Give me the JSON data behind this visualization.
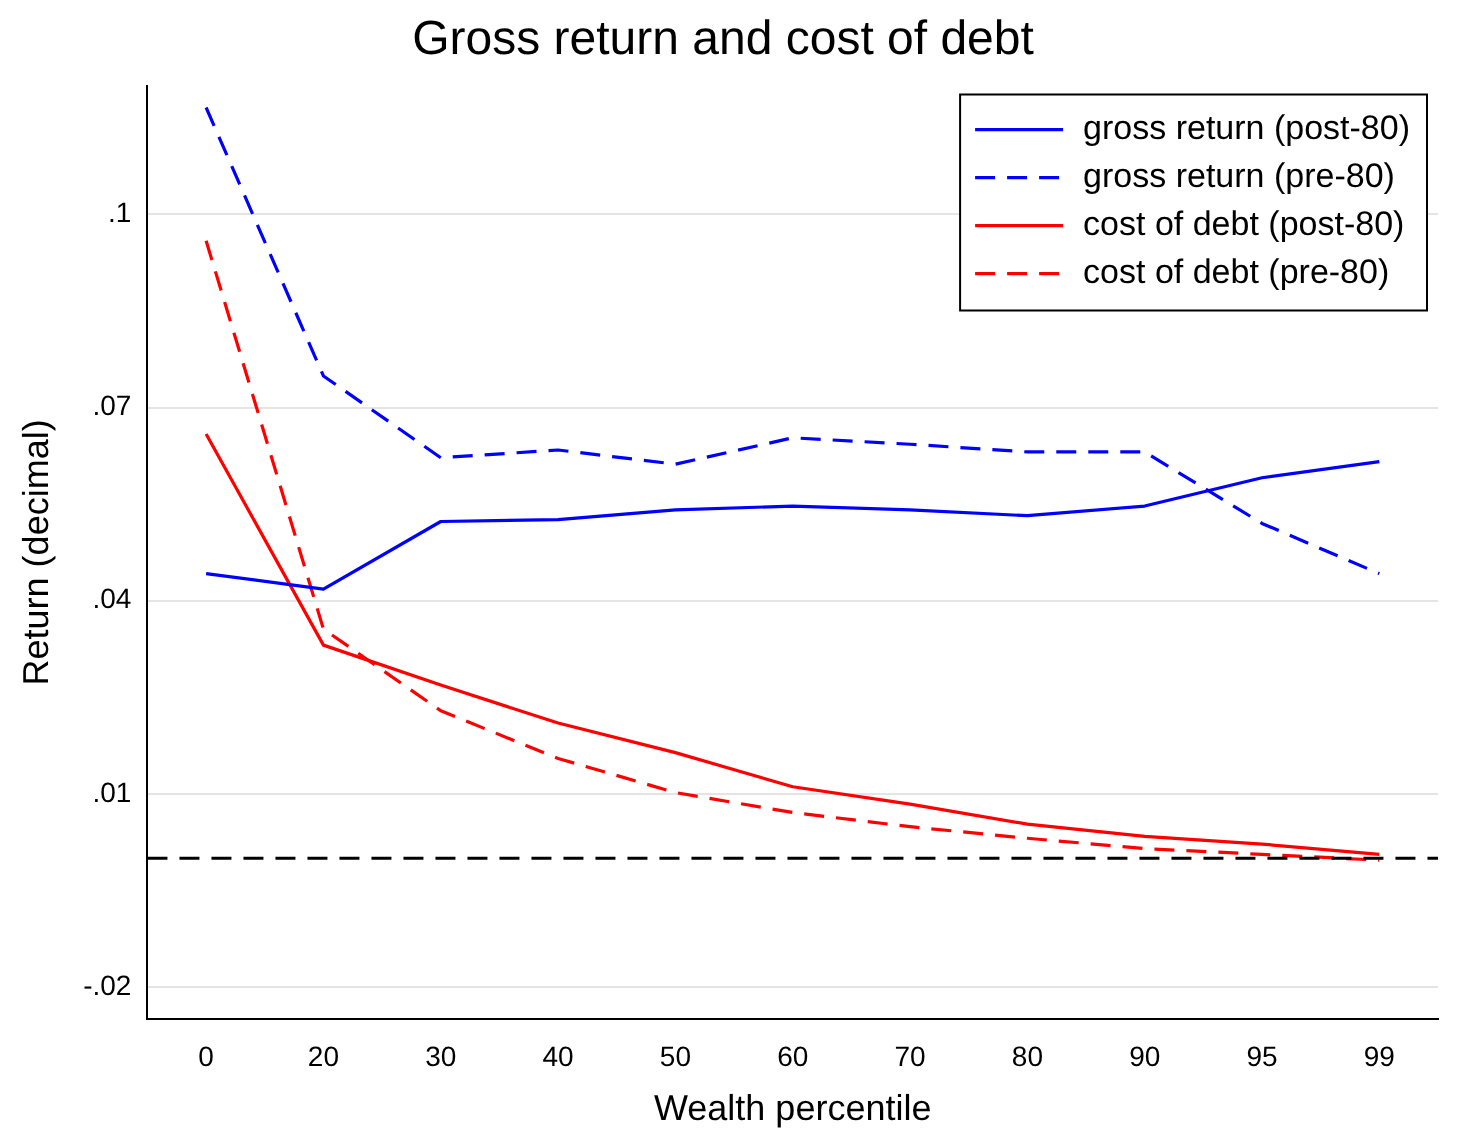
{
  "chart_data": {
    "type": "line",
    "title": "Gross return and cost of debt",
    "xlabel": "Wealth percentile",
    "ylabel": "Return (decimal)",
    "categories": [
      "0",
      "20",
      "30",
      "40",
      "50",
      "60",
      "70",
      "80",
      "90",
      "95",
      "99"
    ],
    "series": [
      {
        "name": "gross return (post-80)",
        "color": "#0000ff",
        "line_style": "solid",
        "values": [
          0.0442,
          0.0418,
          0.0523,
          0.0526,
          0.0541,
          0.0547,
          0.0541,
          0.0532,
          0.0547,
          0.0591,
          0.0616
        ]
      },
      {
        "name": "gross return (pre-80)",
        "color": "#0000ff",
        "line_style": "dashed",
        "values": [
          0.1166,
          0.0749,
          0.0622,
          0.0634,
          0.0612,
          0.0653,
          0.0643,
          0.0631,
          0.0631,
          0.052,
          0.0442
        ]
      },
      {
        "name": "cost of debt (post-80)",
        "color": "#ff0000",
        "line_style": "solid",
        "values": [
          0.0659,
          0.0331,
          0.0269,
          0.021,
          0.0164,
          0.0111,
          0.0084,
          0.0053,
          0.0034,
          0.0022,
          0.0006
        ]
      },
      {
        "name": "cost of debt (pre-80)",
        "color": "#ff0000",
        "line_style": "dashed",
        "values": [
          0.0959,
          0.0356,
          0.0229,
          0.0155,
          0.0102,
          0.0071,
          0.0049,
          0.0031,
          0.0015,
          0.0006,
          -0.0003
        ]
      }
    ],
    "ylim": [
      -0.025,
      0.12
    ],
    "yticks": [
      {
        "value": -0.02,
        "label": "-.02"
      },
      {
        "value": 0.01,
        "label": ".01"
      },
      {
        "value": 0.04,
        "label": ".04"
      },
      {
        "value": 0.07,
        "label": ".07"
      },
      {
        "value": 0.1,
        "label": ".1"
      }
    ],
    "ref_lines": [
      {
        "axis": "y",
        "value": 0,
        "color": "#000000",
        "line_style": "dashed"
      }
    ],
    "grid": "y",
    "legend": "top right",
    "marker": "none"
  }
}
